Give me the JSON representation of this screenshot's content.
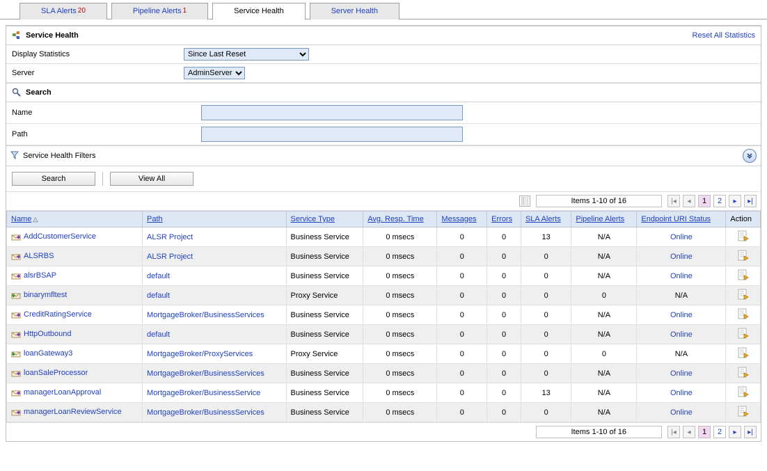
{
  "colors": {
    "link": "#2040c0",
    "alt_row": "#efefef",
    "header_bg": "#dde6f3"
  },
  "tabs": [
    {
      "label": "SLA Alerts",
      "badge": "20",
      "active": false
    },
    {
      "label": "Pipeline Alerts",
      "badge": "1",
      "active": false
    },
    {
      "label": "Service Health",
      "badge": "",
      "active": true
    },
    {
      "label": "Server Health",
      "badge": "",
      "active": false
    }
  ],
  "section_title": "Service Health",
  "reset_link": "Reset All Statistics",
  "display_stats": {
    "label": "Display Statistics",
    "value": "Since Last Reset"
  },
  "server": {
    "label": "Server",
    "value": "AdminServer"
  },
  "search_title": "Search",
  "search_name": {
    "label": "Name",
    "value": ""
  },
  "search_path": {
    "label": "Path",
    "value": ""
  },
  "filters_toggle": "Service Health Filters",
  "buttons": {
    "search": "Search",
    "view_all": "View All"
  },
  "pager": {
    "text": "Items 1-10 of 16",
    "pages": [
      "1",
      "2"
    ],
    "current": "1"
  },
  "columns": {
    "name": "Name",
    "path": "Path",
    "service_type": "Service Type",
    "avg": "Avg. Resp. Time",
    "messages": "Messages",
    "errors": "Errors",
    "sla": "SLA Alerts",
    "pipeline": "Pipeline Alerts",
    "endpoint": "Endpoint URI Status",
    "action": "Action"
  },
  "rows": [
    {
      "name": "AddCustomerService",
      "path": "ALSR Project",
      "type": "Business Service",
      "avg": "0 msecs",
      "msg": "0",
      "err": "0",
      "sla": "13",
      "pipe": "N/A",
      "endpoint": "Online",
      "proxy": false
    },
    {
      "name": "ALSRBS",
      "path": "ALSR Project",
      "type": "Business Service",
      "avg": "0 msecs",
      "msg": "0",
      "err": "0",
      "sla": "0",
      "pipe": "N/A",
      "endpoint": "Online",
      "proxy": false
    },
    {
      "name": "alsrBSAP",
      "path": "default",
      "type": "Business Service",
      "avg": "0 msecs",
      "msg": "0",
      "err": "0",
      "sla": "0",
      "pipe": "N/A",
      "endpoint": "Online",
      "proxy": false
    },
    {
      "name": "binarymfltest",
      "path": "default",
      "type": "Proxy Service",
      "avg": "0 msecs",
      "msg": "0",
      "err": "0",
      "sla": "0",
      "pipe": "0",
      "endpoint": "N/A",
      "proxy": true
    },
    {
      "name": "CreditRatingService",
      "path": "MortgageBroker/BusinessServices",
      "type": "Business Service",
      "avg": "0 msecs",
      "msg": "0",
      "err": "0",
      "sla": "0",
      "pipe": "N/A",
      "endpoint": "Online",
      "proxy": false
    },
    {
      "name": "HttpOutbound",
      "path": "default",
      "type": "Business Service",
      "avg": "0 msecs",
      "msg": "0",
      "err": "0",
      "sla": "0",
      "pipe": "N/A",
      "endpoint": "Online",
      "proxy": false
    },
    {
      "name": "loanGateway3",
      "path": "MortgageBroker/ProxyServices",
      "type": "Proxy Service",
      "avg": "0 msecs",
      "msg": "0",
      "err": "0",
      "sla": "0",
      "pipe": "0",
      "endpoint": "N/A",
      "proxy": true
    },
    {
      "name": "loanSaleProcessor",
      "path": "MortgageBroker/BusinessServices",
      "type": "Business Service",
      "avg": "0 msecs",
      "msg": "0",
      "err": "0",
      "sla": "0",
      "pipe": "N/A",
      "endpoint": "Online",
      "proxy": false
    },
    {
      "name": "managerLoanApproval",
      "path": "MortgageBroker/BusinessService",
      "type": "Business Service",
      "avg": "0 msecs",
      "msg": "0",
      "err": "0",
      "sla": "13",
      "pipe": "N/A",
      "endpoint": "Online",
      "proxy": false
    },
    {
      "name": "managerLoanReviewService",
      "path": "MortgageBroker/BusinessServices",
      "type": "Business Service",
      "avg": "0 msecs",
      "msg": "0",
      "err": "0",
      "sla": "0",
      "pipe": "N/A",
      "endpoint": "Online",
      "proxy": false
    }
  ]
}
